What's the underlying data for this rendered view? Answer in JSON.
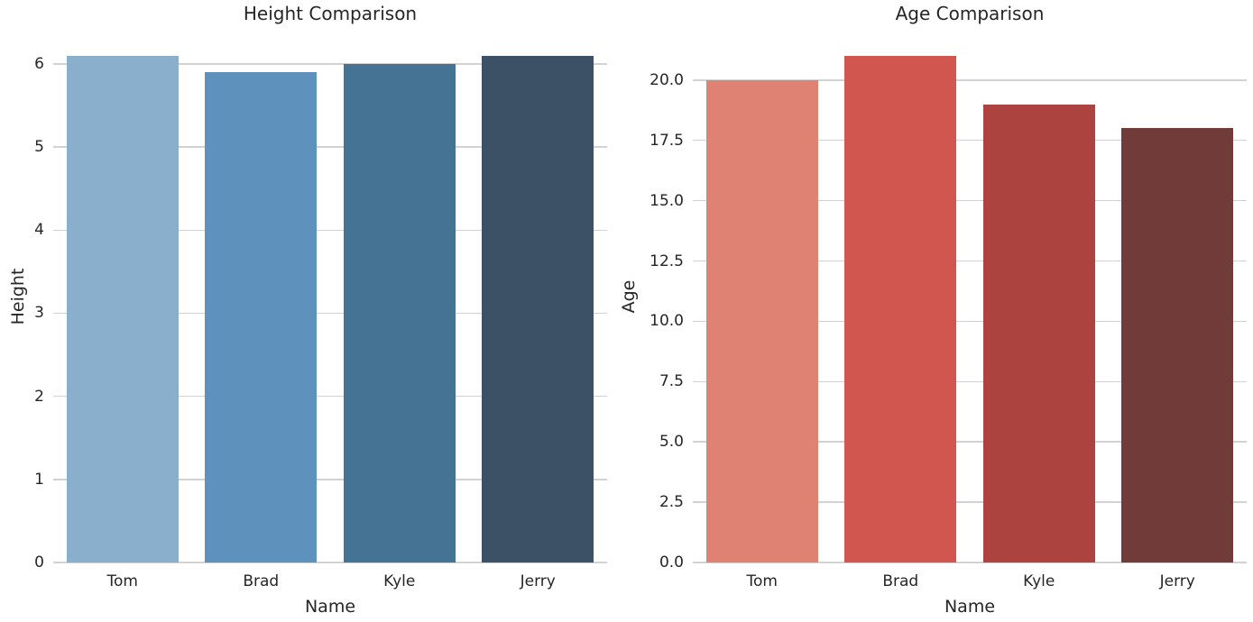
{
  "style": {
    "background": "#ffffff",
    "grid_color": "#d2d2d2",
    "text_color": "#262626"
  },
  "chart_data": [
    {
      "type": "bar",
      "title": "Height Comparison",
      "xlabel": "Name",
      "ylabel": "Height",
      "categories": [
        "Tom",
        "Brad",
        "Kyle",
        "Jerry"
      ],
      "values": [
        6.1,
        5.9,
        6.0,
        6.1
      ],
      "bar_colors": [
        "#8aafcd",
        "#5e92bc",
        "#447394",
        "#3c5166"
      ],
      "ylim": [
        0,
        6.4
      ],
      "ytick_values": [
        0,
        1,
        2,
        3,
        4,
        5,
        6
      ],
      "ytick_labels": [
        "0",
        "1",
        "2",
        "3",
        "4",
        "5",
        "6"
      ],
      "grid": true,
      "legend_position": "none"
    },
    {
      "type": "bar",
      "title": "Age Comparison",
      "xlabel": "Name",
      "ylabel": "Age",
      "categories": [
        "Tom",
        "Brad",
        "Kyle",
        "Jerry"
      ],
      "values": [
        20,
        21,
        19,
        18
      ],
      "bar_colors": [
        "#e08273",
        "#d25650",
        "#ad433f",
        "#703b39"
      ],
      "ylim": [
        0,
        22.05
      ],
      "ytick_values": [
        0,
        2.5,
        5,
        7.5,
        10,
        12.5,
        15,
        17.5,
        20
      ],
      "ytick_labels": [
        "0.0",
        "2.5",
        "5.0",
        "7.5",
        "10.0",
        "12.5",
        "15.0",
        "17.5",
        "20.0"
      ],
      "grid": true,
      "legend_position": "none"
    }
  ]
}
